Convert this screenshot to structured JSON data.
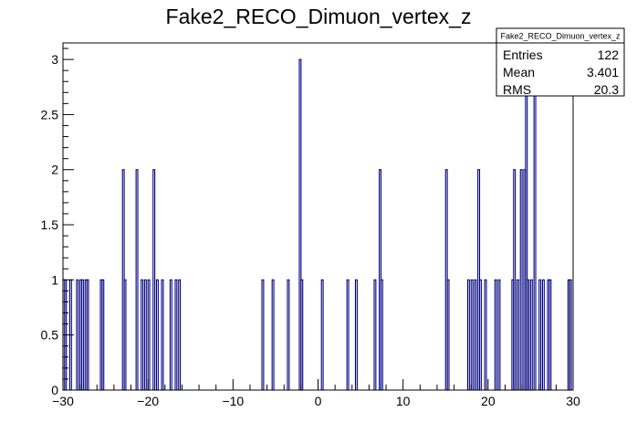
{
  "chart_data": {
    "type": "histogram",
    "title": "Fake2_RECO_Dimuon_vertex_z",
    "xlabel": "",
    "ylabel": "",
    "xlim": [
      -30,
      30
    ],
    "ylim": [
      0,
      3.15
    ],
    "bin_width": 0.2,
    "x_ticks": [
      -30,
      -20,
      -10,
      0,
      10,
      20,
      30
    ],
    "x_tick_labels": [
      "−30",
      "−20",
      "−10",
      "0",
      "10",
      "20",
      "30"
    ],
    "y_ticks": [
      0,
      0.5,
      1,
      1.5,
      2,
      2.5,
      3
    ],
    "y_tick_labels": [
      "0",
      "0.5",
      "1",
      "1.5",
      "2",
      "2.5",
      "3"
    ],
    "line_color": "#000080",
    "bins": [
      {
        "x": -29.9,
        "y": 1
      },
      {
        "x": -29.7,
        "y": 1
      },
      {
        "x": -29.1,
        "y": 1
      },
      {
        "x": -28.3,
        "y": 1
      },
      {
        "x": -27.9,
        "y": 1
      },
      {
        "x": -27.7,
        "y": 1
      },
      {
        "x": -27.3,
        "y": 1
      },
      {
        "x": -27.1,
        "y": 1
      },
      {
        "x": -25.5,
        "y": 1
      },
      {
        "x": -25.3,
        "y": 1
      },
      {
        "x": -22.9,
        "y": 2
      },
      {
        "x": -22.7,
        "y": 1
      },
      {
        "x": -21.3,
        "y": 2
      },
      {
        "x": -20.7,
        "y": 1
      },
      {
        "x": -20.3,
        "y": 1
      },
      {
        "x": -19.9,
        "y": 1
      },
      {
        "x": -19.3,
        "y": 2
      },
      {
        "x": -18.9,
        "y": 1
      },
      {
        "x": -18.3,
        "y": 1
      },
      {
        "x": -17.3,
        "y": 1
      },
      {
        "x": -16.7,
        "y": 1
      },
      {
        "x": -16.3,
        "y": 1
      },
      {
        "x": -6.5,
        "y": 1
      },
      {
        "x": -5.3,
        "y": 1
      },
      {
        "x": -3.5,
        "y": 1
      },
      {
        "x": -2.1,
        "y": 3
      },
      {
        "x": -1.9,
        "y": 1
      },
      {
        "x": 0.5,
        "y": 1
      },
      {
        "x": 3.5,
        "y": 1
      },
      {
        "x": 4.5,
        "y": 1
      },
      {
        "x": 6.7,
        "y": 1
      },
      {
        "x": 7.3,
        "y": 2
      },
      {
        "x": 7.5,
        "y": 1
      },
      {
        "x": 15.1,
        "y": 2
      },
      {
        "x": 15.3,
        "y": 1
      },
      {
        "x": 17.7,
        "y": 1
      },
      {
        "x": 18.1,
        "y": 1
      },
      {
        "x": 18.5,
        "y": 1
      },
      {
        "x": 18.9,
        "y": 2
      },
      {
        "x": 19.1,
        "y": 1
      },
      {
        "x": 19.7,
        "y": 1
      },
      {
        "x": 20.9,
        "y": 1
      },
      {
        "x": 21.3,
        "y": 1
      },
      {
        "x": 22.9,
        "y": 1
      },
      {
        "x": 23.1,
        "y": 2
      },
      {
        "x": 23.5,
        "y": 1
      },
      {
        "x": 23.9,
        "y": 2
      },
      {
        "x": 24.3,
        "y": 2
      },
      {
        "x": 24.5,
        "y": 3
      },
      {
        "x": 24.7,
        "y": 1
      },
      {
        "x": 25.1,
        "y": 1
      },
      {
        "x": 25.5,
        "y": 3
      },
      {
        "x": 26.1,
        "y": 1
      },
      {
        "x": 26.5,
        "y": 1
      },
      {
        "x": 27.1,
        "y": 1
      },
      {
        "x": 27.3,
        "y": 1
      },
      {
        "x": 29.5,
        "y": 1
      },
      {
        "x": 29.7,
        "y": 1
      }
    ],
    "stats": {
      "title": "Fake2_RECO_Dimuon_vertex_z",
      "rows": [
        {
          "label": "Entries",
          "value": "122"
        },
        {
          "label": "Mean",
          "value": "3.401"
        },
        {
          "label": "RMS",
          "value": "20.3"
        }
      ]
    }
  }
}
